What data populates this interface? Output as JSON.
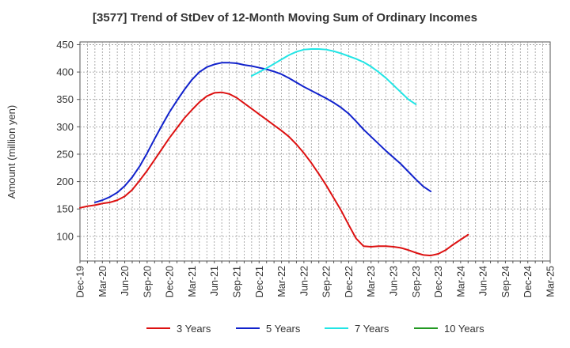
{
  "chart_data": {
    "type": "line",
    "title": "[3577]  Trend of StDev of 12-Month Moving Sum of Ordinary Incomes",
    "xlabel": "",
    "ylabel": "Amount (million yen)",
    "ylim": [
      55,
      455
    ],
    "yticks": [
      100,
      150,
      200,
      250,
      300,
      350,
      400,
      450
    ],
    "x_tick_labels": [
      "Dec-19",
      "Mar-20",
      "Jun-20",
      "Sep-20",
      "Dec-20",
      "Mar-21",
      "Jun-21",
      "Sep-21",
      "Dec-21",
      "Mar-22",
      "Jun-22",
      "Sep-22",
      "Dec-22",
      "Mar-23",
      "Jun-23",
      "Sep-23",
      "Dec-23",
      "Mar-24",
      "Jun-24",
      "Sep-24",
      "Dec-24",
      "Mar-25"
    ],
    "grid": true,
    "legend_position": "bottom",
    "series": [
      {
        "name": "3 Years",
        "color": "#dd1111",
        "start_index": 0,
        "values": [
          152,
          155,
          157,
          160,
          162,
          166,
          173,
          185,
          202,
          220,
          240,
          260,
          280,
          298,
          316,
          331,
          345,
          356,
          362,
          363,
          360,
          353,
          343,
          333,
          323,
          313,
          303,
          293,
          282,
          268,
          252,
          234,
          214,
          193,
          170,
          147,
          121,
          96,
          82,
          81,
          82,
          82,
          81,
          79,
          75,
          70,
          66,
          65,
          68,
          75,
          85,
          94,
          103
        ]
      },
      {
        "name": "5 Years",
        "color": "#1122cc",
        "start_index": 2,
        "values": [
          162,
          166,
          172,
          180,
          192,
          208,
          228,
          252,
          278,
          303,
          327,
          348,
          368,
          386,
          400,
          409,
          414,
          417,
          417,
          416,
          413,
          411,
          408,
          405,
          401,
          396,
          389,
          381,
          373,
          366,
          359,
          352,
          344,
          335,
          324,
          310,
          295,
          282,
          269,
          256,
          244,
          232,
          218,
          204,
          191,
          182
        ]
      },
      {
        "name": "7 Years",
        "color": "#22e5e5",
        "start_index": 23,
        "values": [
          393,
          400,
          407,
          415,
          423,
          431,
          437,
          441,
          442,
          442,
          441,
          438,
          434,
          429,
          424,
          418,
          410,
          400,
          389,
          376,
          363,
          350,
          341
        ]
      },
      {
        "name": "10 Years",
        "color": "#229922",
        "start_index": 0,
        "values": []
      }
    ]
  }
}
